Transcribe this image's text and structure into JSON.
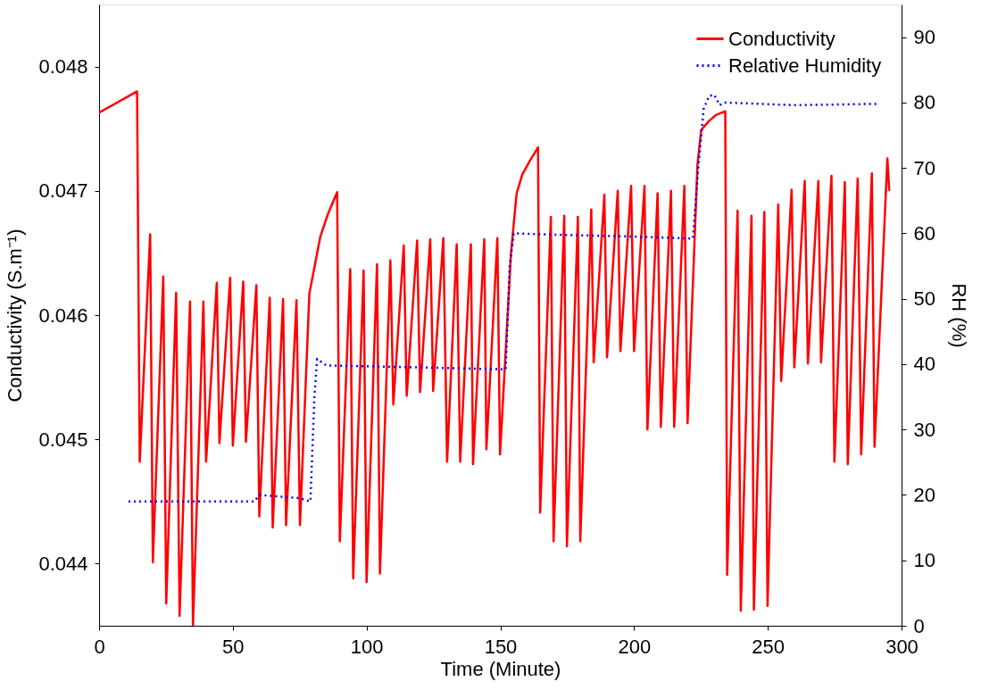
{
  "chart_data": {
    "type": "line",
    "xlabel": "Time (Minute)",
    "ylabel": "Conductivity (S.m⁻¹)",
    "y2label": "RH (%)",
    "xlim": [
      0,
      300
    ],
    "xticks": [
      0,
      50,
      100,
      150,
      200,
      250,
      300
    ],
    "ylim": [
      0.0435,
      0.0485
    ],
    "yticks": [
      0.044,
      0.045,
      0.046,
      0.047,
      0.048
    ],
    "y2lim": [
      0,
      95
    ],
    "y2ticks": [
      0,
      10,
      20,
      30,
      40,
      50,
      60,
      70,
      80,
      90
    ],
    "grid": false,
    "legend": "top right",
    "marker": "none",
    "series": [
      {
        "name": "Conductivity",
        "color": "#ff0000",
        "line_style": "solid",
        "axis": "y",
        "x": [
          0,
          14.2,
          15.2,
          19.1,
          20.1,
          24.0,
          25.1,
          28.8,
          30.1,
          34.0,
          35.1,
          39.0,
          40.0,
          44.0,
          45.0,
          49.0,
          50.0,
          53.9,
          54.9,
          58.8,
          59.9,
          63.8,
          64.9,
          68.8,
          69.9,
          73.8,
          75.1,
          78.6,
          82.7,
          85.5,
          89.0,
          90.0,
          93.9,
          95.0,
          98.9,
          100.0,
          103.9,
          105.0,
          108.9,
          110.0,
          113.9,
          115.0,
          118.9,
          120.0,
          123.8,
          124.9,
          128.7,
          130.1,
          133.7,
          135.0,
          139.0,
          139.8,
          144.0,
          144.8,
          148.9,
          149.9,
          154.0,
          156.1,
          158.2,
          161.0,
          164.1,
          164.9,
          168.9,
          169.9,
          173.9,
          174.9,
          179.0,
          179.9,
          184.0,
          184.9,
          188.9,
          189.9,
          193.9,
          194.9,
          198.9,
          200.0,
          203.9,
          205.0,
          208.8,
          210.0,
          213.8,
          215.0,
          218.8,
          220.0,
          223.7,
          225.1,
          227.9,
          230.6,
          234.1,
          234.8,
          238.7,
          239.9,
          243.9,
          244.8,
          248.7,
          249.9,
          253.9,
          255.0,
          258.9,
          259.9,
          263.8,
          265.0,
          268.9,
          269.9,
          273.8,
          274.9,
          278.8,
          279.9,
          283.6,
          284.9,
          288.9,
          289.9,
          294.7,
          295.4
        ],
        "values": [
          0.04763,
          0.0478,
          0.04482,
          0.04665,
          0.04401,
          0.04631,
          0.04368,
          0.04618,
          0.04358,
          0.04611,
          0.0435,
          0.04611,
          0.04482,
          0.04626,
          0.04497,
          0.0463,
          0.04495,
          0.04627,
          0.04498,
          0.04624,
          0.04438,
          0.04614,
          0.04429,
          0.04613,
          0.04431,
          0.04612,
          0.04431,
          0.04617,
          0.04663,
          0.04681,
          0.04699,
          0.04418,
          0.04637,
          0.04388,
          0.04636,
          0.04385,
          0.04641,
          0.04392,
          0.04644,
          0.04528,
          0.04656,
          0.04535,
          0.0466,
          0.04538,
          0.04661,
          0.04539,
          0.04662,
          0.04482,
          0.04657,
          0.04482,
          0.04657,
          0.0448,
          0.04661,
          0.04492,
          0.04662,
          0.04488,
          0.0465,
          0.04698,
          0.04713,
          0.04724,
          0.04735,
          0.04441,
          0.04679,
          0.04418,
          0.0468,
          0.04414,
          0.04679,
          0.04418,
          0.04685,
          0.04562,
          0.04697,
          0.04566,
          0.047,
          0.04571,
          0.04704,
          0.04571,
          0.04704,
          0.04508,
          0.04698,
          0.0451,
          0.047,
          0.0451,
          0.04704,
          0.04513,
          0.04721,
          0.04749,
          0.04756,
          0.04761,
          0.04764,
          0.04391,
          0.04684,
          0.04362,
          0.0468,
          0.04363,
          0.04683,
          0.04366,
          0.04689,
          0.04547,
          0.04701,
          0.04558,
          0.04708,
          0.04561,
          0.04708,
          0.04562,
          0.04712,
          0.04482,
          0.04707,
          0.0448,
          0.0471,
          0.04488,
          0.04714,
          0.04494,
          0.04726,
          0.047
        ]
      },
      {
        "name": "Relative Humidity",
        "color": "#0000ff",
        "line_style": "dotted",
        "axis": "y2",
        "x": [
          11,
          58,
          60,
          75,
          79,
          80.5,
          81.5,
          85,
          120,
          152,
          153.5,
          155,
          170,
          200,
          222,
          224,
          226,
          228,
          230,
          232,
          234,
          260,
          291
        ],
        "values": [
          19,
          19,
          20,
          19.5,
          19,
          35,
          40.8,
          39.8,
          39.5,
          39.2,
          55,
          60,
          59.8,
          59.5,
          59.2,
          70,
          79,
          81,
          81.2,
          79.6,
          80,
          79.6,
          79.8
        ]
      }
    ]
  }
}
